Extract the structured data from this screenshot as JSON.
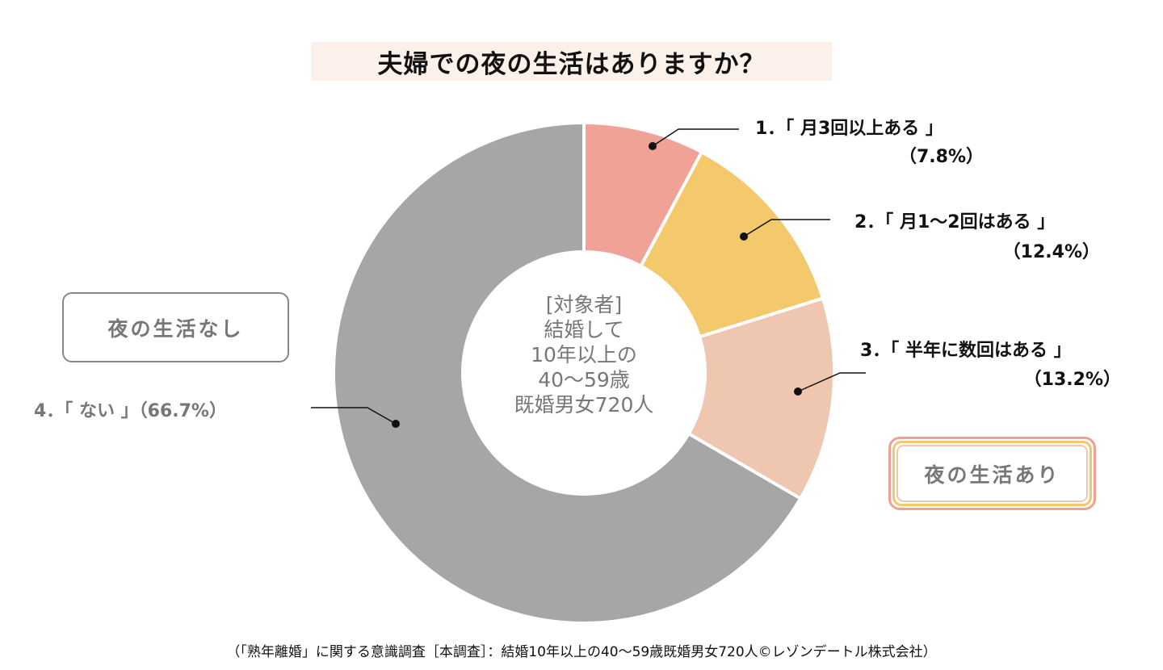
{
  "chart_data": {
    "type": "pie",
    "variant": "donut",
    "title": "夫婦での夜の生活はありますか？",
    "categories": [
      "1．「 月3回以上ある 」",
      "2．「 月1～2回はある 」",
      "3．「 半年に数回はある 」",
      "4．「 ない 」"
    ],
    "values": [
      7.8,
      12.4,
      13.2,
      66.7
    ],
    "value_labels": [
      "（7.8%）",
      "（12.4%）",
      "（13.2%）",
      "（66.7%）"
    ],
    "colors": [
      "#f0a296",
      "#f4c96b",
      "#efc7b0",
      "#a6a6a6"
    ],
    "center_text": [
      "[対象者]",
      "結婚して",
      "10年以上の",
      "40～59歳",
      "既婚男女720人"
    ],
    "group_labels": {
      "none": "夜の生活なし",
      "yes": "夜の生活あり"
    },
    "source": "（「熟年離婚」に関する意識調査［本調査］：結婚10年以上の40～59歳既婚男女720人©レゾンデートル株式会社）"
  }
}
